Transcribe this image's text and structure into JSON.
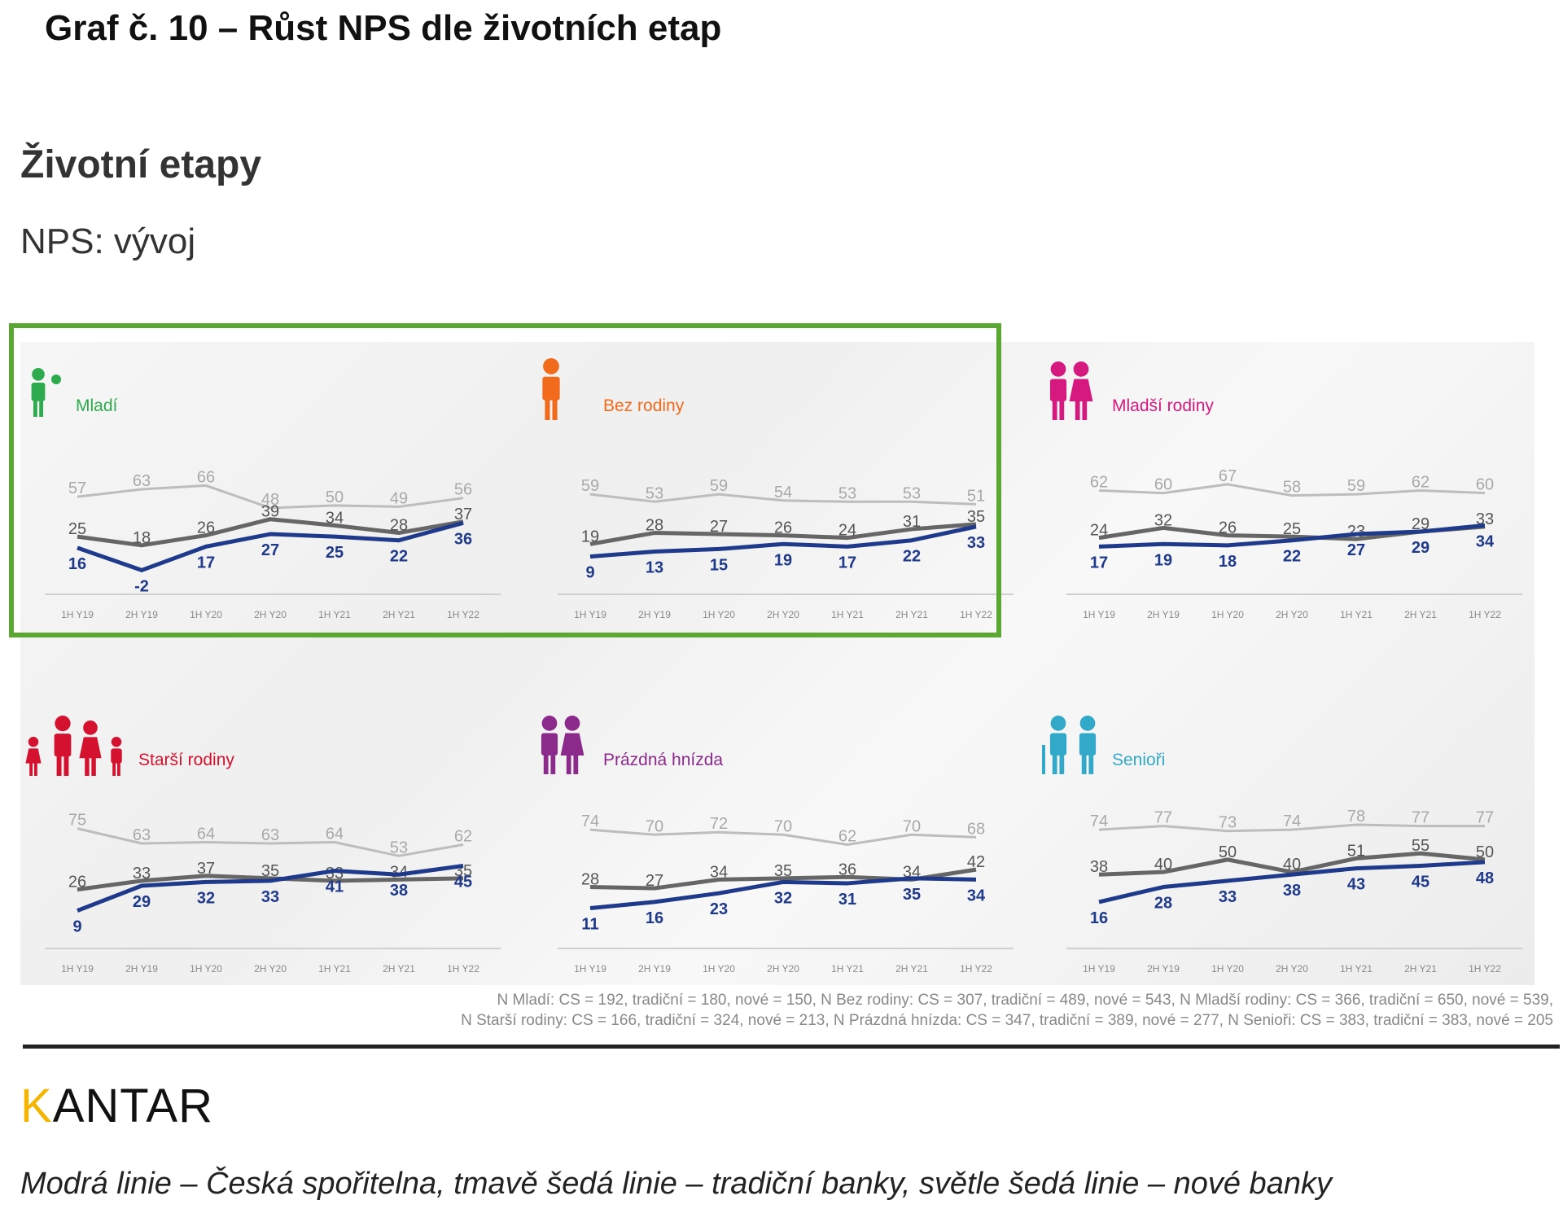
{
  "page": {
    "title": "Graf č. 10 – Růst NPS dle životních etap",
    "subtitle": "Životní etapy",
    "subsubtitle": "NPS: vývoj",
    "footnote_lines": [
      "N Mladí: CS = 192, tradiční = 180, nové = 150, N Bez rodiny: CS = 307, tradiční = 489, nové = 543, N Mladší rodiny: CS = 366, tradiční = 650, nové = 539,",
      "N Starší rodiny: CS = 166, tradiční = 324, nové = 213, N Prázdná hnízda: CS = 347, tradiční = 389, nové = 277, N Senioři: CS = 383, tradiční = 383, nové = 205"
    ],
    "brand_first": "K",
    "brand_rest": "ANTAR",
    "caption": "Modrá linie – Česká spořitelna, tmavě šedá linie – tradiční banky, světle šedá linie – nové banky"
  },
  "colors": {
    "cs": "#1f3a8a",
    "traditional": "#666666",
    "new": "#bdbdbd",
    "highlight": "#5aa832"
  },
  "chart_data": [
    {
      "type": "line",
      "panel": "Mladí",
      "label_color": "#2eab4e",
      "icon": "young-person-icon",
      "categories": [
        "1H Y19",
        "2H Y19",
        "1H Y20",
        "2H Y20",
        "1H Y21",
        "2H Y21",
        "1H Y22"
      ],
      "series": [
        {
          "name": "nové banky",
          "values": [
            57,
            63,
            66,
            48,
            50,
            49,
            56
          ]
        },
        {
          "name": "tradiční banky",
          "values": [
            25,
            18,
            26,
            39,
            34,
            28,
            37
          ]
        },
        {
          "name": "Česká spořitelna",
          "values": [
            16,
            -2,
            17,
            27,
            25,
            22,
            36
          ]
        }
      ]
    },
    {
      "type": "line",
      "panel": "Bez rodiny",
      "label_color": "#f26a1b",
      "icon": "single-person-icon",
      "categories": [
        "1H Y19",
        "2H Y19",
        "1H Y20",
        "2H Y20",
        "1H Y21",
        "2H Y21",
        "1H Y22"
      ],
      "series": [
        {
          "name": "nové banky",
          "values": [
            59,
            53,
            59,
            54,
            53,
            53,
            51
          ]
        },
        {
          "name": "tradiční banky",
          "values": [
            19,
            28,
            27,
            26,
            24,
            31,
            35
          ]
        },
        {
          "name": "Česká spořitelna",
          "values": [
            9,
            13,
            15,
            19,
            17,
            22,
            33
          ]
        }
      ]
    },
    {
      "type": "line",
      "panel": "Mladší rodiny",
      "label_color": "#d6197f",
      "icon": "young-family-icon",
      "categories": [
        "1H Y19",
        "2H Y19",
        "1H Y20",
        "2H Y20",
        "1H Y21",
        "2H Y21",
        "1H Y22"
      ],
      "series": [
        {
          "name": "nové banky",
          "values": [
            62,
            60,
            67,
            58,
            59,
            62,
            60
          ]
        },
        {
          "name": "tradiční banky",
          "values": [
            24,
            32,
            26,
            25,
            23,
            29,
            33
          ]
        },
        {
          "name": "Česká spořitelna",
          "values": [
            17,
            19,
            18,
            22,
            27,
            29,
            34
          ]
        }
      ]
    },
    {
      "type": "line",
      "panel": "Starší rodiny",
      "label_color": "#d4122f",
      "icon": "older-family-icon",
      "categories": [
        "1H Y19",
        "2H Y19",
        "1H Y20",
        "2H Y20",
        "1H Y21",
        "2H Y21",
        "1H Y22"
      ],
      "series": [
        {
          "name": "nové banky",
          "values": [
            75,
            63,
            64,
            63,
            64,
            53,
            62
          ]
        },
        {
          "name": "tradiční banky",
          "values": [
            26,
            33,
            37,
            35,
            33,
            34,
            35
          ]
        },
        {
          "name": "Česká spořitelna",
          "values": [
            9,
            29,
            32,
            33,
            41,
            38,
            45
          ]
        }
      ]
    },
    {
      "type": "line",
      "panel": "Prázdná hnízda",
      "label_color": "#8b2a8b",
      "icon": "empty-nest-couple-icon",
      "categories": [
        "1H Y19",
        "2H Y19",
        "1H Y20",
        "2H Y20",
        "1H Y21",
        "2H Y21",
        "1H Y22"
      ],
      "series": [
        {
          "name": "nové banky",
          "values": [
            74,
            70,
            72,
            70,
            62,
            70,
            68
          ]
        },
        {
          "name": "tradiční banky",
          "values": [
            28,
            27,
            34,
            35,
            36,
            34,
            42
          ]
        },
        {
          "name": "Česká spořitelna",
          "values": [
            11,
            16,
            23,
            32,
            31,
            35,
            34
          ]
        }
      ]
    },
    {
      "type": "line",
      "panel": "Senioři",
      "label_color": "#33a9c9",
      "icon": "senior-couple-icon",
      "categories": [
        "1H Y19",
        "2H Y19",
        "1H Y20",
        "2H Y20",
        "1H Y21",
        "2H Y21",
        "1H Y22"
      ],
      "series": [
        {
          "name": "nové banky",
          "values": [
            74,
            77,
            73,
            74,
            78,
            77,
            77
          ]
        },
        {
          "name": "tradiční banky",
          "values": [
            38,
            40,
            50,
            40,
            51,
            55,
            50
          ]
        },
        {
          "name": "Česká spořitelna",
          "values": [
            16,
            28,
            33,
            38,
            43,
            45,
            48
          ]
        }
      ]
    }
  ]
}
